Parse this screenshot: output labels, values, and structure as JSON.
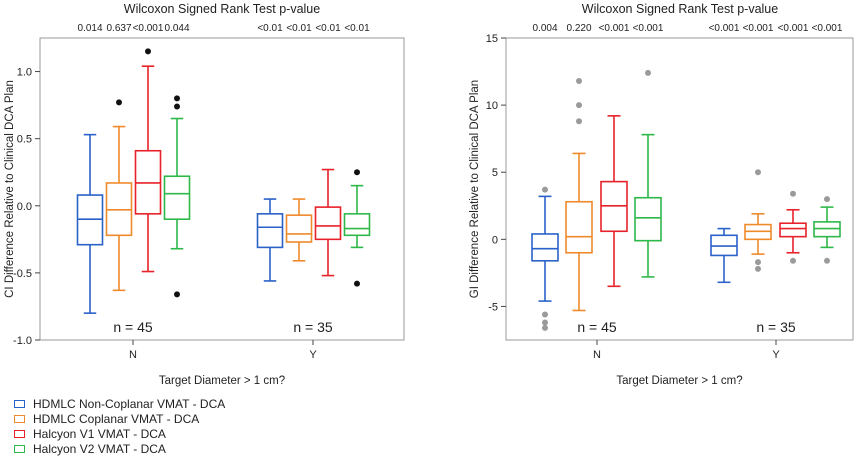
{
  "legend": [
    {
      "label": "HDMLC Non-Coplanar VMAT - DCA",
      "color": "#2a62c9"
    },
    {
      "label": "HDMLC Coplanar VMAT - DCA",
      "color": "#ef8a2c"
    },
    {
      "label": "Halcyon V1 VMAT - DCA",
      "color": "#e8222a"
    },
    {
      "label": "Halcyon V2 VMAT - DCA",
      "color": "#2fb84a"
    }
  ],
  "chart_data": [
    {
      "type": "box",
      "title": "Wilcoxon Signed Rank Test p-value",
      "xlabel": "Target Diameter > 1 cm?",
      "ylabel": "CI Difference Relative to Clinical DCA Plan",
      "ylim": [
        -1.0,
        1.25
      ],
      "yticks": [
        -1.0,
        -0.5,
        0.0,
        0.5,
        1.0
      ],
      "ytick_labels": [
        "-1.0",
        "-0.5",
        "0.0",
        "0.5",
        "1.0"
      ],
      "outlier_color": "#111111",
      "groups": [
        {
          "category": "N",
          "n_label": "n = 45",
          "pvalues": [
            "0.014",
            "0.637",
            "<0.001",
            "0.044"
          ],
          "boxes": [
            {
              "series": "HDMLC Non-Coplanar VMAT - DCA",
              "min": -0.8,
              "q1": -0.29,
              "median": -0.1,
              "q3": 0.08,
              "max": 0.53,
              "outliers": []
            },
            {
              "series": "HDMLC Coplanar VMAT - DCA",
              "min": -0.63,
              "q1": -0.22,
              "median": -0.03,
              "q3": 0.17,
              "max": 0.59,
              "outliers": [
                0.77
              ]
            },
            {
              "series": "Halcyon V1 VMAT - DCA",
              "min": -0.49,
              "q1": -0.06,
              "median": 0.17,
              "q3": 0.41,
              "max": 1.04,
              "outliers": [
                1.15
              ]
            },
            {
              "series": "Halcyon V2 VMAT - DCA",
              "min": -0.32,
              "q1": -0.1,
              "median": 0.09,
              "q3": 0.22,
              "max": 0.65,
              "outliers": [
                0.8,
                0.74,
                -0.66
              ]
            }
          ]
        },
        {
          "category": "Y",
          "n_label": "n = 35",
          "pvalues": [
            "<0.01",
            "<0.01",
            "<0.01",
            "<0.01"
          ],
          "boxes": [
            {
              "series": "HDMLC Non-Coplanar VMAT - DCA",
              "min": -0.56,
              "q1": -0.31,
              "median": -0.16,
              "q3": -0.06,
              "max": 0.05,
              "outliers": []
            },
            {
              "series": "HDMLC Coplanar VMAT - DCA",
              "min": -0.41,
              "q1": -0.27,
              "median": -0.21,
              "q3": -0.07,
              "max": 0.05,
              "outliers": []
            },
            {
              "series": "Halcyon V1 VMAT - DCA",
              "min": -0.52,
              "q1": -0.25,
              "median": -0.15,
              "q3": -0.01,
              "max": 0.27,
              "outliers": []
            },
            {
              "series": "Halcyon V2 VMAT - DCA",
              "min": -0.31,
              "q1": -0.22,
              "median": -0.17,
              "q3": -0.06,
              "max": 0.15,
              "outliers": [
                0.25,
                -0.58
              ]
            }
          ]
        }
      ]
    },
    {
      "type": "box",
      "title": "Wilcoxon Signed Rank Test p-value",
      "xlabel": "Target Diameter > 1 cm?",
      "ylabel": "GI Difference Relative to Clinical DCA Plan",
      "ylim": [
        -7.5,
        15
      ],
      "yticks": [
        -5,
        0,
        5,
        10,
        15
      ],
      "ytick_labels": [
        "-5",
        "0",
        "5",
        "10",
        "15"
      ],
      "outlier_color": "#9a9a9a",
      "groups": [
        {
          "category": "N",
          "n_label": "n = 45",
          "pvalues": [
            "0.004",
            "0.220",
            "<0.001",
            "<0.001"
          ],
          "boxes": [
            {
              "series": "HDMLC Non-Coplanar VMAT - DCA",
              "min": -4.6,
              "q1": -1.6,
              "median": -0.7,
              "q3": 0.4,
              "max": 3.2,
              "outliers": [
                3.7,
                -5.6,
                -6.2,
                -6.6
              ]
            },
            {
              "series": "HDMLC Coplanar VMAT - DCA",
              "min": -5.3,
              "q1": -1.0,
              "median": 0.2,
              "q3": 2.8,
              "max": 6.4,
              "outliers": [
                11.8,
                10.0,
                8.8
              ]
            },
            {
              "series": "Halcyon V1 VMAT - DCA",
              "min": -3.5,
              "q1": 0.6,
              "median": 2.5,
              "q3": 4.3,
              "max": 9.2,
              "outliers": []
            },
            {
              "series": "Halcyon V2 VMAT - DCA",
              "min": -2.8,
              "q1": -0.1,
              "median": 1.6,
              "q3": 3.1,
              "max": 7.8,
              "outliers": [
                12.4
              ]
            }
          ]
        },
        {
          "category": "Y",
          "n_label": "n = 35",
          "pvalues": [
            "<0.001",
            "<0.001",
            "<0.001",
            "<0.001"
          ],
          "boxes": [
            {
              "series": "HDMLC Non-Coplanar VMAT - DCA",
              "min": -3.2,
              "q1": -1.2,
              "median": -0.5,
              "q3": 0.3,
              "max": 0.8,
              "outliers": []
            },
            {
              "series": "HDMLC Coplanar VMAT - DCA",
              "min": -1.1,
              "q1": 0.0,
              "median": 0.6,
              "q3": 1.1,
              "max": 1.9,
              "outliers": [
                5.0,
                -1.7,
                -2.2
              ]
            },
            {
              "series": "Halcyon V1 VMAT - DCA",
              "min": -1.0,
              "q1": 0.2,
              "median": 0.8,
              "q3": 1.2,
              "max": 2.2,
              "outliers": [
                3.4,
                -1.6
              ]
            },
            {
              "series": "Halcyon V2 VMAT - DCA",
              "min": -0.6,
              "q1": 0.2,
              "median": 0.8,
              "q3": 1.3,
              "max": 2.4,
              "outliers": [
                3.0,
                -1.6
              ]
            }
          ]
        }
      ]
    }
  ]
}
